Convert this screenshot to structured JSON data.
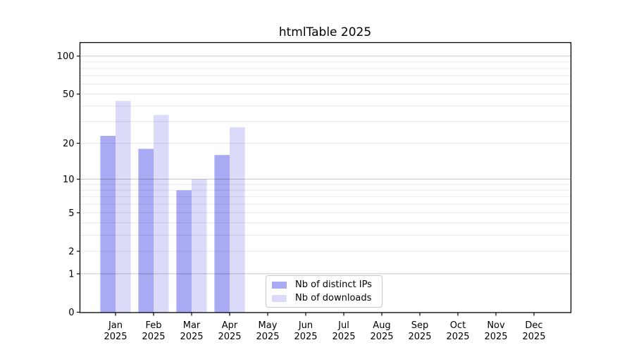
{
  "chart_data": {
    "type": "bar",
    "title": "htmlTable 2025",
    "categories": [
      "Jan",
      "Feb",
      "Mar",
      "Apr",
      "May",
      "Jun",
      "Jul",
      "Aug",
      "Sep",
      "Oct",
      "Nov",
      "Dec"
    ],
    "x_year_label": "2025",
    "series": [
      {
        "name": "Nb of distinct IPs",
        "color": "#a9a9f4",
        "values": [
          23,
          18,
          8,
          16,
          0,
          0,
          0,
          0,
          0,
          0,
          0,
          0
        ]
      },
      {
        "name": "Nb of downloads",
        "color": "#dbdbf9",
        "values": [
          44,
          34,
          10,
          27,
          0,
          0,
          0,
          0,
          0,
          0,
          0,
          0
        ]
      }
    ],
    "yscale": "log1p",
    "ylim": [
      0,
      130
    ],
    "yticks": [
      0,
      1,
      2,
      5,
      10,
      20,
      50,
      100
    ],
    "grid": {
      "major": [
        1,
        10,
        100
      ],
      "minor": [
        2,
        3,
        4,
        5,
        6,
        7,
        8,
        9,
        20,
        30,
        40,
        50,
        60,
        70,
        80,
        90
      ]
    },
    "legend_position": "lower center",
    "colors": {
      "axis": "#000000",
      "tick_label": "#000000",
      "grid_major": "rgba(0,0,0,0.22)",
      "grid_minor": "rgba(0,0,0,0.085)",
      "background": "#ffffff"
    }
  }
}
